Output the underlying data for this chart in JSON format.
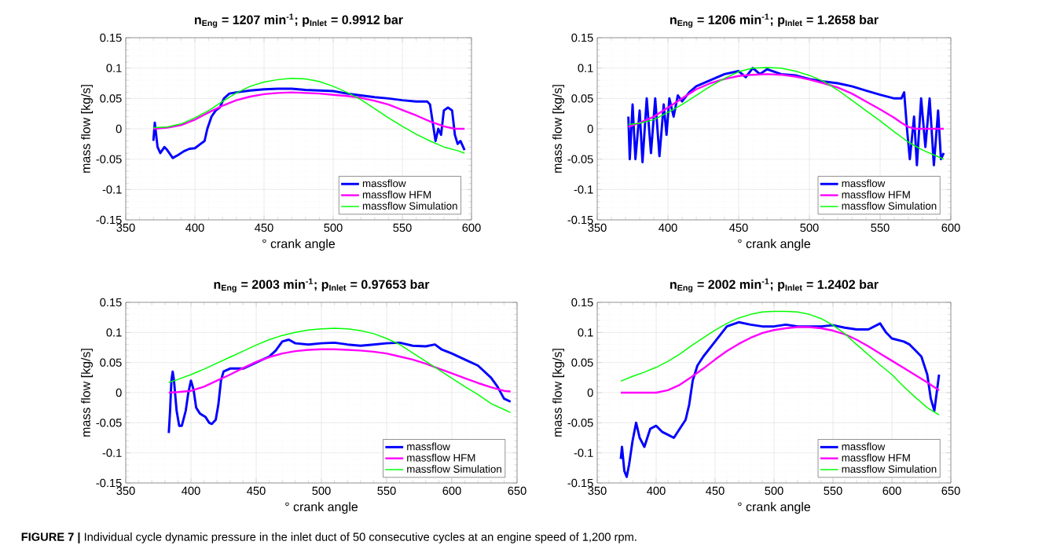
{
  "chart_data": [
    {
      "type": "line",
      "title": "n$_{Eng}$ = 1207 min$^{-1}$; p$_{Inlet}$ = 0.9912 bar",
      "xlabel": "° crank angle",
      "ylabel": "mass flow [kg/s]",
      "xlim": [
        350,
        600
      ],
      "xticks": [
        350,
        400,
        450,
        500,
        550,
        600
      ],
      "ylim": [
        -0.15,
        0.15
      ],
      "yticks": [
        -0.15,
        -0.1,
        -0.05,
        0,
        0.05,
        0.1,
        0.15
      ],
      "grid": true,
      "legend": "bottom right",
      "annotations": [
        "**FIGURE 7 |** Individual cycle dynamic pressure in the inlet duct of 50 consecutive cycles at an engine speed of 1,200 rpm."
      ],
      "series": [
        {
          "name": "massflow",
          "color": "#0000ff",
          "x": [
            370,
            371,
            372,
            373,
            375,
            378,
            380,
            384,
            388,
            392,
            396,
            400,
            404,
            407,
            409,
            412,
            415,
            418,
            421,
            425,
            430,
            440,
            450,
            460,
            470,
            480,
            490,
            500,
            510,
            520,
            530,
            540,
            550,
            560,
            568,
            570,
            572,
            574,
            576,
            578,
            580,
            583,
            586,
            588,
            590,
            592,
            595
          ],
          "values": [
            -0.02,
            0.01,
            -0.01,
            -0.03,
            -0.04,
            -0.03,
            -0.035,
            -0.048,
            -0.043,
            -0.037,
            -0.033,
            -0.032,
            -0.025,
            -0.02,
            0.0,
            0.02,
            0.03,
            0.035,
            0.05,
            0.058,
            0.06,
            0.063,
            0.065,
            0.066,
            0.066,
            0.064,
            0.063,
            0.062,
            0.058,
            0.055,
            0.052,
            0.05,
            0.047,
            0.045,
            0.045,
            0.04,
            0.01,
            -0.02,
            0.0,
            -0.01,
            0.03,
            0.035,
            0.03,
            -0.01,
            -0.025,
            -0.02,
            -0.035
          ]
        },
        {
          "name": "massflow HFM",
          "color": "#ff00ff",
          "x": [
            370,
            380,
            390,
            400,
            410,
            420,
            430,
            440,
            450,
            460,
            470,
            480,
            490,
            500,
            510,
            520,
            530,
            540,
            550,
            560,
            570,
            580,
            588,
            595
          ],
          "values": [
            0,
            0.002,
            0.006,
            0.015,
            0.027,
            0.038,
            0.047,
            0.053,
            0.057,
            0.059,
            0.06,
            0.059,
            0.058,
            0.056,
            0.054,
            0.051,
            0.046,
            0.04,
            0.031,
            0.022,
            0.012,
            0.004,
            0.0,
            0.0
          ]
        },
        {
          "name": "massflow Simulation",
          "color": "#00ff00",
          "x": [
            370,
            380,
            390,
            400,
            410,
            420,
            430,
            440,
            450,
            460,
            470,
            480,
            490,
            500,
            510,
            520,
            530,
            540,
            550,
            560,
            570,
            580,
            590,
            595
          ],
          "values": [
            0.002,
            0.003,
            0.008,
            0.018,
            0.03,
            0.045,
            0.059,
            0.07,
            0.077,
            0.081,
            0.083,
            0.082,
            0.078,
            0.07,
            0.06,
            0.048,
            0.033,
            0.018,
            0.004,
            -0.009,
            -0.02,
            -0.03,
            -0.036,
            -0.04
          ]
        }
      ]
    },
    {
      "type": "line",
      "title": "n$_{Eng}$ = 1206 min$^{-1}$; p$_{Inlet}$ = 1.2658 bar",
      "xlabel": "° crank angle",
      "ylabel": "mass flow [kg/s]",
      "xlim": [
        350,
        600
      ],
      "xticks": [
        350,
        400,
        450,
        500,
        550,
        600
      ],
      "ylim": [
        -0.15,
        0.15
      ],
      "yticks": [
        -0.15,
        -0.1,
        -0.05,
        0,
        0.05,
        0.1,
        0.15
      ],
      "grid": true,
      "legend": "bottom right",
      "series": [
        {
          "name": "massflow",
          "color": "#0000ff",
          "x": [
            372,
            373,
            375,
            377,
            380,
            382,
            385,
            388,
            391,
            394,
            397,
            399,
            401,
            404,
            407,
            410,
            415,
            420,
            430,
            440,
            450,
            455,
            460,
            465,
            470,
            480,
            490,
            500,
            510,
            520,
            530,
            540,
            550,
            560,
            565,
            567,
            569,
            571,
            574,
            576,
            579,
            582,
            585,
            588,
            591,
            593,
            595
          ],
          "values": [
            0.02,
            -0.05,
            0.04,
            -0.05,
            0.03,
            -0.055,
            0.05,
            -0.04,
            0.05,
            -0.045,
            0.04,
            -0.01,
            0.05,
            0.02,
            0.055,
            0.045,
            0.06,
            0.07,
            0.08,
            0.09,
            0.095,
            0.085,
            0.1,
            0.09,
            0.098,
            0.09,
            0.088,
            0.082,
            0.078,
            0.075,
            0.07,
            0.063,
            0.056,
            0.05,
            0.05,
            0.06,
            0.0,
            -0.05,
            0.02,
            -0.06,
            0.05,
            -0.03,
            0.05,
            -0.06,
            0.03,
            -0.05,
            -0.04
          ]
        },
        {
          "name": "massflow HFM",
          "color": "#ff00ff",
          "x": [
            372,
            380,
            390,
            400,
            410,
            420,
            430,
            440,
            450,
            460,
            470,
            480,
            490,
            500,
            510,
            520,
            530,
            540,
            550,
            560,
            565,
            570,
            575,
            595
          ],
          "values": [
            0.003,
            0.01,
            0.02,
            0.035,
            0.05,
            0.065,
            0.075,
            0.082,
            0.087,
            0.089,
            0.09,
            0.089,
            0.086,
            0.081,
            0.075,
            0.068,
            0.058,
            0.045,
            0.032,
            0.018,
            0.01,
            0.003,
            0.0,
            0.0
          ]
        },
        {
          "name": "massflow Simulation",
          "color": "#00ff00",
          "x": [
            372,
            380,
            390,
            400,
            410,
            420,
            430,
            440,
            450,
            460,
            470,
            480,
            490,
            500,
            510,
            520,
            530,
            540,
            550,
            560,
            570,
            580,
            590,
            595
          ],
          "values": [
            0.007,
            0.009,
            0.015,
            0.027,
            0.04,
            0.055,
            0.07,
            0.083,
            0.094,
            0.1,
            0.101,
            0.1,
            0.095,
            0.088,
            0.078,
            0.064,
            0.047,
            0.03,
            0.013,
            -0.005,
            -0.022,
            -0.035,
            -0.045,
            -0.05
          ]
        }
      ]
    },
    {
      "type": "line",
      "title": "n$_{Eng}$ = 2003 min$^{-1}$; p$_{Inlet}$ = 0.97653 bar",
      "xlabel": "° crank angle",
      "ylabel": "mass flow [kg/s]",
      "xlim": [
        350,
        650
      ],
      "xticks": [
        350,
        400,
        450,
        500,
        550,
        600,
        650
      ],
      "ylim": [
        -0.15,
        0.15
      ],
      "yticks": [
        -0.15,
        -0.1,
        -0.05,
        0,
        0.05,
        0.1,
        0.15
      ],
      "grid": true,
      "legend": "bottom right",
      "series": [
        {
          "name": "massflow",
          "color": "#0000ff",
          "x": [
            383,
            384,
            385,
            386,
            387,
            389,
            391,
            393,
            396,
            398,
            400,
            402,
            404,
            407,
            411,
            414,
            416,
            419,
            421,
            423,
            425,
            430,
            440,
            450,
            460,
            465,
            470,
            475,
            480,
            490,
            500,
            510,
            520,
            530,
            540,
            550,
            560,
            570,
            580,
            587,
            592,
            600,
            610,
            620,
            630,
            635,
            640,
            645
          ],
          "values": [
            -0.067,
            -0.03,
            0.02,
            0.035,
            0.02,
            -0.03,
            -0.055,
            -0.055,
            -0.03,
            0.0,
            0.02,
            0.005,
            -0.025,
            -0.035,
            -0.04,
            -0.05,
            -0.052,
            -0.045,
            -0.02,
            0.02,
            0.035,
            0.04,
            0.04,
            0.05,
            0.06,
            0.07,
            0.085,
            0.088,
            0.082,
            0.08,
            0.082,
            0.083,
            0.08,
            0.078,
            0.08,
            0.082,
            0.083,
            0.078,
            0.077,
            0.08,
            0.072,
            0.065,
            0.055,
            0.045,
            0.025,
            0.01,
            -0.01,
            -0.015
          ]
        },
        {
          "name": "massflow HFM",
          "color": "#ff00ff",
          "x": [
            383,
            390,
            400,
            410,
            420,
            430,
            440,
            450,
            460,
            470,
            480,
            490,
            500,
            510,
            520,
            530,
            540,
            550,
            560,
            570,
            580,
            590,
            600,
            610,
            620,
            630,
            640,
            645
          ],
          "values": [
            0,
            0.001,
            0.003,
            0.01,
            0.02,
            0.03,
            0.041,
            0.051,
            0.059,
            0.065,
            0.069,
            0.071,
            0.072,
            0.072,
            0.071,
            0.07,
            0.068,
            0.065,
            0.06,
            0.055,
            0.048,
            0.04,
            0.032,
            0.024,
            0.016,
            0.009,
            0.003,
            0.002
          ]
        },
        {
          "name": "massflow Simulation",
          "color": "#00ff00",
          "x": [
            383,
            390,
            400,
            410,
            420,
            430,
            440,
            450,
            460,
            470,
            480,
            490,
            500,
            510,
            520,
            530,
            540,
            550,
            560,
            570,
            580,
            590,
            600,
            610,
            620,
            630,
            640,
            645
          ],
          "values": [
            0.017,
            0.022,
            0.03,
            0.039,
            0.049,
            0.059,
            0.069,
            0.079,
            0.088,
            0.095,
            0.1,
            0.104,
            0.106,
            0.107,
            0.106,
            0.103,
            0.098,
            0.09,
            0.08,
            0.066,
            0.052,
            0.038,
            0.024,
            0.01,
            -0.003,
            -0.018,
            -0.028,
            -0.033
          ]
        }
      ]
    },
    {
      "type": "line",
      "title": "n$_{Eng}$ = 2002 min$^{-1}$; p$_{Inlet}$ = 1.2402 bar",
      "xlabel": "° crank angle",
      "ylabel": "mass flow [kg/s]",
      "xlim": [
        350,
        650
      ],
      "xticks": [
        350,
        400,
        450,
        500,
        550,
        600,
        650
      ],
      "ylim": [
        -0.15,
        0.15
      ],
      "yticks": [
        -0.15,
        -0.1,
        -0.05,
        0,
        0.05,
        0.1,
        0.15
      ],
      "grid": true,
      "legend": "bottom right",
      "series": [
        {
          "name": "massflow",
          "color": "#0000ff",
          "x": [
            370,
            371,
            373,
            375,
            377,
            380,
            383,
            386,
            390,
            395,
            400,
            405,
            410,
            415,
            420,
            425,
            428,
            431,
            435,
            440,
            450,
            460,
            470,
            480,
            490,
            500,
            510,
            520,
            530,
            540,
            550,
            560,
            570,
            580,
            590,
            595,
            600,
            610,
            615,
            620,
            625,
            630,
            633,
            636,
            638,
            640
          ],
          "values": [
            -0.11,
            -0.09,
            -0.13,
            -0.14,
            -0.12,
            -0.08,
            -0.05,
            -0.075,
            -0.09,
            -0.06,
            -0.055,
            -0.065,
            -0.07,
            -0.075,
            -0.06,
            -0.045,
            -0.02,
            0.02,
            0.045,
            0.06,
            0.085,
            0.11,
            0.117,
            0.113,
            0.11,
            0.11,
            0.113,
            0.11,
            0.11,
            0.11,
            0.112,
            0.108,
            0.105,
            0.105,
            0.115,
            0.1,
            0.09,
            0.085,
            0.08,
            0.07,
            0.06,
            0.03,
            -0.01,
            -0.03,
            0.0,
            0.03
          ]
        },
        {
          "name": "massflow HFM",
          "color": "#ff00ff",
          "x": [
            370,
            380,
            390,
            400,
            410,
            420,
            430,
            440,
            450,
            460,
            470,
            480,
            490,
            500,
            510,
            520,
            530,
            540,
            550,
            560,
            570,
            580,
            590,
            600,
            610,
            620,
            630,
            640
          ],
          "values": [
            0,
            0,
            0,
            0,
            0.004,
            0.013,
            0.026,
            0.04,
            0.055,
            0.069,
            0.081,
            0.091,
            0.099,
            0.104,
            0.107,
            0.109,
            0.109,
            0.107,
            0.103,
            0.097,
            0.088,
            0.077,
            0.065,
            0.053,
            0.041,
            0.029,
            0.017,
            0.004
          ]
        },
        {
          "name": "massflow Simulation",
          "color": "#00ff00",
          "x": [
            370,
            380,
            390,
            400,
            410,
            420,
            430,
            440,
            450,
            460,
            470,
            480,
            490,
            500,
            510,
            520,
            530,
            540,
            550,
            560,
            570,
            580,
            590,
            600,
            610,
            620,
            630,
            640
          ],
          "values": [
            0.019,
            0.027,
            0.034,
            0.042,
            0.052,
            0.064,
            0.078,
            0.091,
            0.104,
            0.115,
            0.124,
            0.13,
            0.134,
            0.135,
            0.135,
            0.134,
            0.13,
            0.123,
            0.112,
            0.098,
            0.08,
            0.063,
            0.046,
            0.03,
            0.01,
            -0.008,
            -0.025,
            -0.037
          ]
        }
      ]
    }
  ]
}
